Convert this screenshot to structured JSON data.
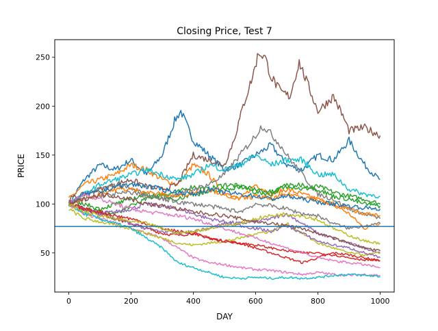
{
  "chart_data": {
    "type": "line",
    "title": "Closing Price, Test 7",
    "xlabel": "DAY",
    "ylabel": "PRICE",
    "xlim": [
      -45,
      1045
    ],
    "ylim": [
      10,
      268
    ],
    "xticks": [
      0,
      200,
      400,
      600,
      800,
      1000
    ],
    "yticks": [
      50,
      100,
      150,
      200,
      250
    ],
    "grid": false,
    "legend": "none",
    "hline": {
      "y": 77,
      "color": "#1f77b4"
    },
    "series": [
      {
        "color": "#1f77b4",
        "x": [
          0,
          50,
          100,
          150,
          200,
          250,
          300,
          340,
          360,
          380,
          400,
          450,
          500,
          550,
          600,
          650,
          700,
          750,
          800,
          850,
          900,
          950,
          980,
          1000
        ],
        "values": [
          100,
          125,
          140,
          135,
          145,
          130,
          150,
          185,
          195,
          180,
          165,
          150,
          135,
          140,
          150,
          160,
          140,
          135,
          150,
          145,
          165,
          140,
          130,
          125
        ]
      },
      {
        "color": "#ff7f0e",
        "x": [
          0,
          50,
          100,
          150,
          200,
          250,
          300,
          350,
          400,
          450,
          500,
          550,
          600,
          650,
          700,
          750,
          800,
          850,
          900,
          950,
          1000
        ],
        "values": [
          105,
          120,
          125,
          130,
          140,
          135,
          125,
          120,
          140,
          130,
          110,
          105,
          120,
          110,
          115,
          110,
          105,
          100,
          90,
          75,
          80
        ]
      },
      {
        "color": "#2ca02c",
        "x": [
          0,
          50,
          100,
          150,
          200,
          250,
          300,
          350,
          400,
          450,
          500,
          550,
          600,
          650,
          700,
          750,
          800,
          850,
          900,
          950,
          1000
        ],
        "values": [
          100,
          95,
          92,
          90,
          98,
          105,
          110,
          112,
          118,
          115,
          120,
          118,
          112,
          110,
          120,
          115,
          118,
          112,
          108,
          105,
          100
        ]
      },
      {
        "color": "#d62728",
        "x": [
          0,
          50,
          100,
          150,
          200,
          250,
          300,
          350,
          400,
          450,
          500,
          550,
          600,
          650,
          700,
          750,
          800,
          850,
          900,
          950,
          1000
        ],
        "values": [
          100,
          95,
          90,
          85,
          80,
          75,
          70,
          68,
          70,
          65,
          62,
          60,
          55,
          50,
          45,
          40,
          45,
          50,
          48,
          45,
          42
        ]
      },
      {
        "color": "#9467bd",
        "x": [
          0,
          50,
          100,
          150,
          200,
          250,
          300,
          350,
          400,
          450,
          500,
          550,
          600,
          650,
          700,
          750,
          800,
          850,
          900,
          950,
          1000
        ],
        "values": [
          100,
          95,
          90,
          92,
          95,
          100,
          98,
          95,
          90,
          85,
          82,
          80,
          82,
          85,
          90,
          80,
          70,
          65,
          60,
          55,
          50
        ]
      },
      {
        "color": "#8c564b",
        "x": [
          0,
          50,
          100,
          150,
          200,
          250,
          300,
          350,
          400,
          450,
          500,
          530,
          560,
          590,
          610,
          630,
          650,
          680,
          710,
          740,
          770,
          800,
          850,
          880,
          900,
          950,
          1000
        ],
        "values": [
          105,
          110,
          115,
          120,
          125,
          118,
          115,
          120,
          150,
          145,
          140,
          165,
          200,
          230,
          255,
          250,
          230,
          215,
          210,
          245,
          220,
          195,
          210,
          190,
          175,
          178,
          170
        ]
      },
      {
        "color": "#e377c2",
        "x": [
          0,
          50,
          100,
          150,
          200,
          250,
          300,
          350,
          400,
          450,
          500,
          550,
          600,
          650,
          700,
          750,
          800,
          850,
          900,
          950,
          1000
        ],
        "values": [
          100,
          90,
          85,
          80,
          75,
          70,
          65,
          55,
          45,
          40,
          38,
          35,
          33,
          32,
          30,
          28,
          30,
          28,
          27,
          28,
          27
        ]
      },
      {
        "color": "#7f7f7f",
        "x": [
          0,
          50,
          100,
          150,
          200,
          250,
          300,
          350,
          400,
          450,
          500,
          550,
          600,
          620,
          640,
          680,
          700,
          750,
          800,
          850,
          900,
          950,
          1000
        ],
        "values": [
          100,
          110,
          115,
          120,
          115,
          110,
          105,
          110,
          115,
          120,
          130,
          150,
          170,
          180,
          175,
          160,
          150,
          130,
          110,
          105,
          95,
          90,
          85
        ]
      },
      {
        "color": "#bcbd22",
        "x": [
          0,
          50,
          100,
          150,
          200,
          250,
          300,
          350,
          400,
          450,
          500,
          550,
          600,
          650,
          700,
          750,
          800,
          850,
          900,
          950,
          1000
        ],
        "values": [
          95,
          85,
          82,
          78,
          75,
          70,
          65,
          60,
          58,
          60,
          62,
          65,
          70,
          72,
          80,
          70,
          60,
          55,
          50,
          48,
          50
        ]
      },
      {
        "color": "#17becf",
        "x": [
          0,
          50,
          100,
          150,
          200,
          250,
          300,
          350,
          400,
          450,
          500,
          550,
          600,
          650,
          700,
          750,
          800,
          850,
          900,
          950,
          1000
        ],
        "values": [
          100,
          90,
          85,
          80,
          75,
          65,
          55,
          40,
          35,
          30,
          25,
          24,
          25,
          24,
          25,
          24,
          25,
          27,
          28,
          27,
          26
        ]
      },
      {
        "color": "#17becf",
        "x": [
          0,
          50,
          100,
          150,
          200,
          250,
          300,
          350,
          400,
          450,
          500,
          550,
          600,
          650,
          700,
          750,
          800,
          850,
          900,
          950,
          1000
        ],
        "values": [
          100,
          110,
          120,
          125,
          130,
          135,
          130,
          125,
          130,
          140,
          135,
          140,
          150,
          140,
          145,
          145,
          130,
          130,
          115,
          110,
          108
        ]
      },
      {
        "color": "#2ca02c",
        "x": [
          0,
          50,
          100,
          150,
          200,
          250,
          300,
          350,
          400,
          450,
          500,
          550,
          600,
          650,
          700,
          750,
          800,
          850,
          900,
          950,
          1000
        ],
        "values": [
          100,
          100,
          95,
          100,
          105,
          110,
          108,
          105,
          110,
          112,
          115,
          118,
          115,
          112,
          118,
          120,
          115,
          108,
          105,
          100,
          98
        ]
      },
      {
        "color": "#ff7f0e",
        "x": [
          0,
          50,
          100,
          150,
          200,
          250,
          300,
          350,
          400,
          450,
          500,
          550,
          600,
          650,
          700,
          750,
          800,
          850,
          900,
          950,
          1000
        ],
        "values": [
          100,
          105,
          110,
          115,
          115,
          112,
          110,
          108,
          112,
          115,
          110,
          105,
          108,
          105,
          110,
          108,
          104,
          98,
          95,
          90,
          88
        ]
      },
      {
        "color": "#9467bd",
        "x": [
          0,
          50,
          100,
          150,
          200,
          250,
          300,
          350,
          400,
          450,
          500,
          550,
          600,
          650,
          700,
          750,
          800,
          850,
          900,
          950,
          1000
        ],
        "values": [
          100,
          95,
          90,
          85,
          80,
          75,
          72,
          70,
          72,
          75,
          80,
          78,
          75,
          72,
          78,
          70,
          62,
          58,
          55,
          50,
          45
        ]
      },
      {
        "color": "#d62728",
        "x": [
          0,
          50,
          100,
          150,
          200,
          250,
          300,
          350,
          400,
          450,
          500,
          550,
          600,
          650,
          700,
          750,
          800,
          850,
          900,
          950,
          1000
        ],
        "values": [
          100,
          95,
          92,
          88,
          85,
          80,
          75,
          72,
          70,
          65,
          62,
          60,
          58,
          55,
          52,
          50,
          50,
          48,
          45,
          43,
          42
        ]
      },
      {
        "color": "#bcbd22",
        "x": [
          0,
          50,
          100,
          150,
          200,
          250,
          300,
          350,
          400,
          450,
          500,
          550,
          600,
          650,
          700,
          750,
          800,
          850,
          900,
          950,
          1000
        ],
        "values": [
          100,
          92,
          88,
          85,
          82,
          80,
          75,
          70,
          72,
          75,
          78,
          80,
          85,
          88,
          90,
          88,
          84,
          75,
          68,
          62,
          60
        ]
      },
      {
        "color": "#7f7f7f",
        "x": [
          0,
          50,
          100,
          150,
          200,
          250,
          300,
          350,
          400,
          450,
          500,
          550,
          600,
          650,
          700,
          750,
          800,
          850,
          900,
          950,
          1000
        ],
        "values": [
          100,
          105,
          108,
          110,
          112,
          108,
          105,
          102,
          100,
          98,
          95,
          92,
          100,
          98,
          95,
          90,
          88,
          80,
          75,
          78,
          80
        ]
      },
      {
        "color": "#1f77b4",
        "x": [
          0,
          50,
          100,
          150,
          200,
          250,
          300,
          350,
          400,
          450,
          500,
          550,
          600,
          650,
          700,
          750,
          800,
          850,
          900,
          950,
          1000
        ],
        "values": [
          100,
          110,
          112,
          118,
          120,
          118,
          115,
          112,
          110,
          115,
          112,
          110,
          108,
          105,
          108,
          105,
          102,
          100,
          98,
          96,
          95
        ]
      },
      {
        "color": "#e377c2",
        "x": [
          0,
          50,
          100,
          150,
          200,
          250,
          300,
          350,
          400,
          450,
          500,
          550,
          600,
          650,
          700,
          750,
          800,
          850,
          900,
          950,
          1000
        ],
        "values": [
          100,
          110,
          105,
          100,
          95,
          92,
          90,
          88,
          85,
          80,
          75,
          70,
          65,
          60,
          55,
          50,
          45,
          42,
          40,
          38,
          35
        ]
      },
      {
        "color": "#8c564b",
        "x": [
          0,
          50,
          100,
          150,
          200,
          250,
          300,
          350,
          400,
          450,
          500,
          550,
          600,
          650,
          700,
          750,
          800,
          850,
          900,
          950,
          1000
        ],
        "values": [
          100,
          105,
          110,
          108,
          105,
          100,
          98,
          95,
          92,
          90,
          88,
          85,
          82,
          80,
          78,
          75,
          70,
          65,
          60,
          55,
          52
        ]
      }
    ]
  }
}
